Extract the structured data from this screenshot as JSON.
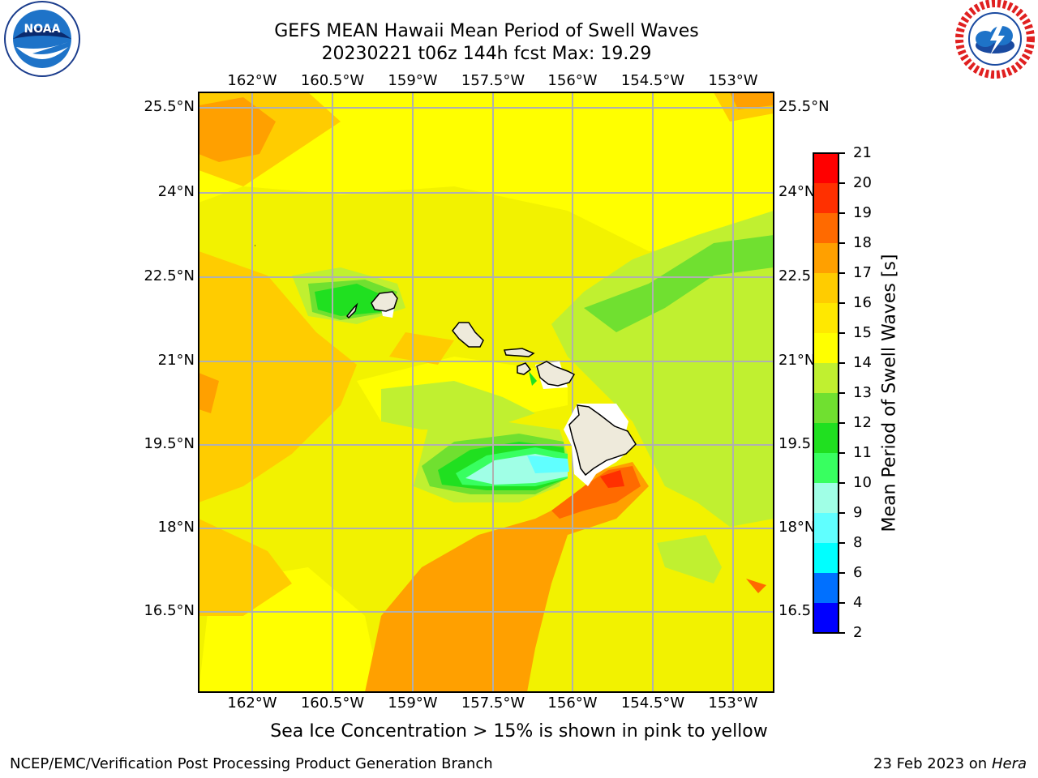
{
  "header": {
    "title_line1": "GEFS MEAN Hawaii Mean Period of Swell Waves",
    "title_line2": "20230221 t06z 144h fcst   Max: 19.29"
  },
  "logos": {
    "left": "noaa-logo",
    "right": "nws-logo"
  },
  "map": {
    "lon_labels": [
      "162°W",
      "160.5°W",
      "159°W",
      "157.5°W",
      "156°W",
      "154.5°W",
      "153°W"
    ],
    "lat_labels": [
      "25.5°N",
      "24°N",
      "22.5°N",
      "21°N",
      "19.5°N",
      "18°N",
      "16.5°N"
    ],
    "lat_labels_right": [
      "25.5°N",
      "24°N",
      "22.5",
      "21°N",
      "19.5",
      "18°N",
      "16.5"
    ],
    "max_value": 19.29
  },
  "colorbar": {
    "label": "Mean Period of Swell Waves [s]",
    "ticks": [
      "2",
      "4",
      "6",
      "8",
      "9",
      "10",
      "11",
      "12",
      "13",
      "14",
      "15",
      "16",
      "17",
      "18",
      "19",
      "20",
      "21"
    ],
    "colors": [
      "#0000ff",
      "#0070ff",
      "#00ffff",
      "#60ffff",
      "#a0ffe6",
      "#38ff60",
      "#20e020",
      "#70e030",
      "#c0f030",
      "#ffff00",
      "#ffe800",
      "#ffcc00",
      "#ffa000",
      "#ff6a00",
      "#ff3000",
      "#ff0000"
    ]
  },
  "note": "Sea Ice Concentration > 15% is shown in pink to yellow",
  "footer": {
    "left": "NCEP/EMC/Verification Post Processing Product Generation Branch",
    "date": "23 Feb 2023 on",
    "machine": "Hera"
  }
}
